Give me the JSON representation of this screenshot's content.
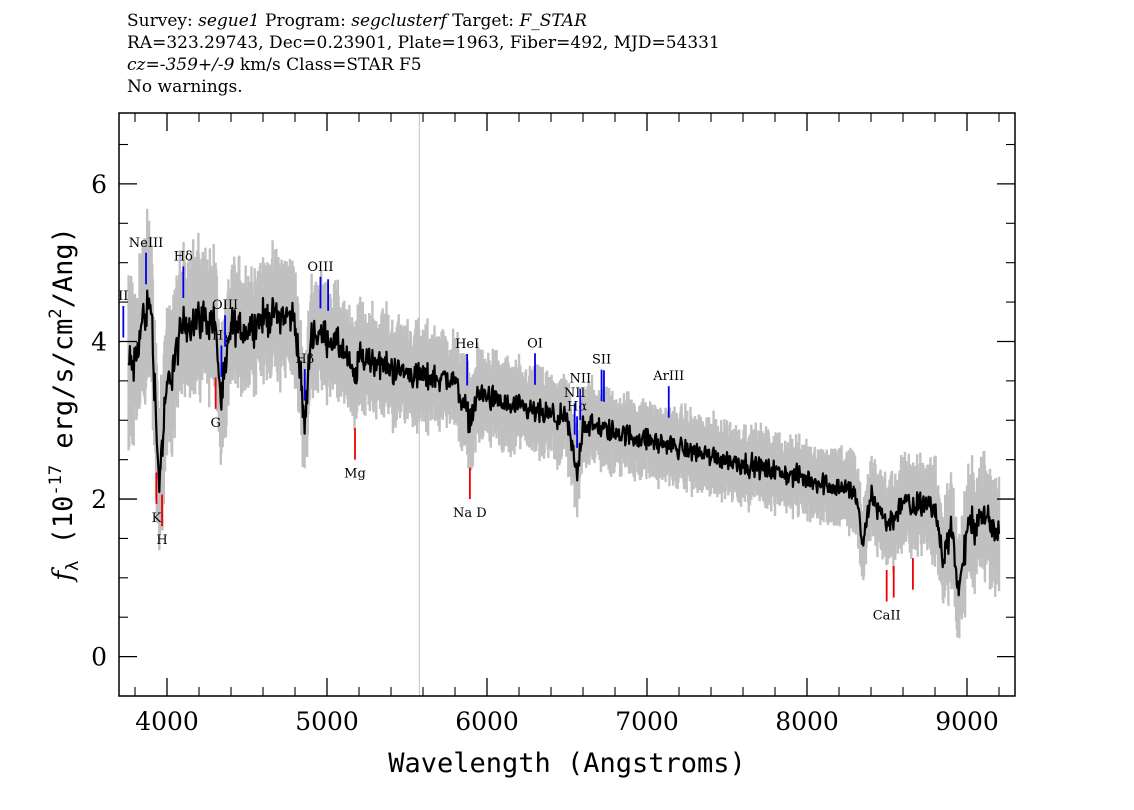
{
  "header": {
    "survey_label": "Survey:",
    "survey": "segue1",
    "program_label": "Program:",
    "program": "segclusterf",
    "target_label": "Target:",
    "target": "F_STAR",
    "line2": "RA=323.29743, Dec=0.23901, Plate=1963, Fiber=492, MJD=54331",
    "cz_label": "cz=",
    "cz_value": "-359+/-9",
    "cz_rest": " km/s Class=STAR F5",
    "warnings": "No warnings."
  },
  "chart_data": {
    "type": "line",
    "xlabel": "Wavelength (Angstroms)",
    "ylabel_prefix": "f",
    "ylabel_sub": "λ",
    "ylabel_text": " (10",
    "ylabel_exp": "-17",
    "ylabel_unit": " erg/s/cm",
    "ylabel_unit_exp": "2",
    "ylabel_tail": "/Ang)",
    "xlim": [
      3700,
      9300
    ],
    "ylim": [
      -0.5,
      6.9
    ],
    "x_ticks": [
      "4000",
      "5000",
      "6000",
      "7000",
      "8000",
      "9000"
    ],
    "y_ticks": [
      "0",
      "2",
      "4",
      "6"
    ],
    "vertical_marker": 5577,
    "series": [
      {
        "role": "model",
        "x": [
          3800,
          3850,
          3900,
          3950,
          4000,
          4100,
          4200,
          4300,
          4340,
          4400,
          4500,
          4600,
          4700,
          4800,
          4861,
          4900,
          5000,
          5100,
          5175,
          5200,
          5300,
          5400,
          5500,
          5600,
          5700,
          5800,
          5893,
          5950,
          6000,
          6100,
          6200,
          6300,
          6400,
          6500,
          6563,
          6600,
          6700,
          6800,
          6900,
          7000,
          7100,
          7200,
          7300,
          7400,
          7500,
          7600,
          7700,
          7800,
          7900,
          8000,
          8100,
          8200,
          8300,
          8350,
          8400,
          8498,
          8542,
          8600,
          8662,
          8700,
          8800,
          8850,
          8900,
          8950,
          9000,
          9100,
          9200
        ],
        "y": [
          3.7,
          4.3,
          4.5,
          2.2,
          3.4,
          4.2,
          4.3,
          4.25,
          3.2,
          4.2,
          4.15,
          4.3,
          4.35,
          4.3,
          2.9,
          4.1,
          4.05,
          3.9,
          3.5,
          3.8,
          3.75,
          3.65,
          3.6,
          3.55,
          3.55,
          3.5,
          3.0,
          3.35,
          3.3,
          3.2,
          3.15,
          3.1,
          3.05,
          3.0,
          2.3,
          2.95,
          2.9,
          2.85,
          2.8,
          2.75,
          2.7,
          2.65,
          2.6,
          2.55,
          2.5,
          2.45,
          2.4,
          2.35,
          2.3,
          2.25,
          2.2,
          2.15,
          2.1,
          1.4,
          2.05,
          1.7,
          1.75,
          2.0,
          1.85,
          1.95,
          1.9,
          1.2,
          1.7,
          0.8,
          1.6,
          1.8,
          1.5
        ]
      },
      {
        "role": "error",
        "x": [
          3750,
          4000,
          4500,
          5000,
          5500,
          6000,
          6500,
          7000,
          7500,
          8000,
          8500,
          9000,
          9200
        ],
        "y": [
          0.35,
          0.3,
          0.25,
          0.22,
          0.2,
          0.18,
          0.17,
          0.15,
          0.15,
          0.15,
          0.17,
          0.22,
          0.25
        ]
      }
    ],
    "emission_lines": [
      {
        "label": "II",
        "x": 3727
      },
      {
        "label": "NeIII",
        "x": 3869
      },
      {
        "label": "Hδ",
        "x": 4102
      },
      {
        "label": "Hγ",
        "x": 4340
      },
      {
        "label": "OIII",
        "x": 4363
      },
      {
        "label": "Hβ",
        "x": 4861
      },
      {
        "label": "OIII",
        "x": 4959
      },
      {
        "label": "",
        "x": 5007
      },
      {
        "label": "HeI",
        "x": 5876
      },
      {
        "label": "OI",
        "x": 6300
      },
      {
        "label": "NII",
        "x": 6548
      },
      {
        "label": "Hα",
        "x": 6563
      },
      {
        "label": "NII",
        "x": 6583
      },
      {
        "label": "SII",
        "x": 6716
      },
      {
        "label": "",
        "x": 6731
      },
      {
        "label": "ArIII",
        "x": 7136
      }
    ],
    "absorption_lines": [
      {
        "label": "K",
        "x": 3934
      },
      {
        "label": "H",
        "x": 3969
      },
      {
        "label": "G",
        "x": 4304
      },
      {
        "label": "Mg",
        "x": 5175
      },
      {
        "label": "Na  D",
        "x": 5893
      },
      {
        "label": "CaII",
        "x": 8498
      },
      {
        "label": "",
        "x": 8542
      },
      {
        "label": "",
        "x": 8662
      }
    ],
    "colors": {
      "flux": "#000000",
      "error": "#c0c0c0",
      "emission": "#0000ee",
      "absorption": "#ee0000",
      "marker": "#c0c0c0"
    }
  }
}
